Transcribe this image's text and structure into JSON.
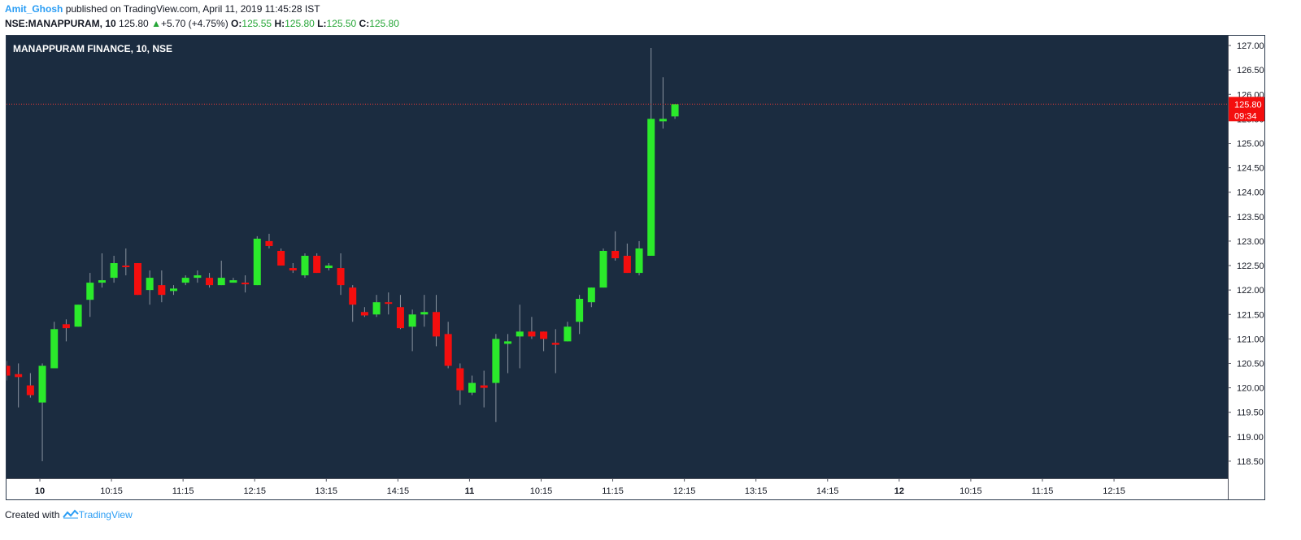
{
  "header": {
    "author": "Amit_Ghosh",
    "published_text": "published on TradingView.com, April 11, 2019 11:45:28 IST",
    "symbol": "NSE:MANAPPURAM, 10",
    "last": "125.80",
    "change_arrow": "▲",
    "change": "+5.70 (+4.75%)",
    "o_label": "O:",
    "o": "125.55",
    "h_label": "H:",
    "h": "125.80",
    "l_label": "L:",
    "l": "125.50",
    "c_label": "C:",
    "c": "125.80"
  },
  "footer": {
    "created_with": "Created with",
    "brand": "TradingView"
  },
  "colors": {
    "background": "#1b2c40",
    "up": "#2bea2b",
    "down": "#f40e0e",
    "wick": "#8a94a0",
    "price_line": "#e53935"
  },
  "chart_data": {
    "type": "candlestick",
    "title": "MANAPPURAM FINANCE, 10, NSE",
    "ylim": [
      118.15,
      127.2
    ],
    "y_ticks": [
      "118.50",
      "119.00",
      "119.50",
      "120.00",
      "120.50",
      "121.00",
      "121.50",
      "122.00",
      "122.50",
      "123.00",
      "123.50",
      "124.00",
      "124.50",
      "125.00",
      "125.50",
      "126.00",
      "126.50",
      "127.00"
    ],
    "x_ticks": [
      "10",
      "10:15",
      "11:15",
      "12:15",
      "13:15",
      "14:15",
      "11",
      "10:15",
      "11:15",
      "12:15",
      "13:15",
      "14:15",
      "12",
      "10:15",
      "11:15",
      "12:15"
    ],
    "last_price": {
      "value": 125.8,
      "label": "125.80",
      "countdown": "09:34"
    },
    "candles": [
      {
        "o": 120.45,
        "h": 120.55,
        "l": 120.15,
        "c": 120.25
      },
      {
        "o": 120.28,
        "h": 120.5,
        "l": 119.6,
        "c": 120.22
      },
      {
        "o": 120.05,
        "h": 120.3,
        "l": 119.8,
        "c": 119.85
      },
      {
        "o": 119.7,
        "h": 120.5,
        "l": 118.5,
        "c": 120.45
      },
      {
        "o": 120.4,
        "h": 121.35,
        "l": 120.4,
        "c": 121.2
      },
      {
        "o": 121.3,
        "h": 121.4,
        "l": 120.95,
        "c": 121.22
      },
      {
        "o": 121.25,
        "h": 121.7,
        "l": 121.25,
        "c": 121.7
      },
      {
        "o": 121.8,
        "h": 122.35,
        "l": 121.45,
        "c": 122.15
      },
      {
        "o": 122.15,
        "h": 122.75,
        "l": 122.05,
        "c": 122.2
      },
      {
        "o": 122.25,
        "h": 122.7,
        "l": 122.15,
        "c": 122.55
      },
      {
        "o": 122.5,
        "h": 122.85,
        "l": 122.3,
        "c": 122.48
      },
      {
        "o": 122.55,
        "h": 122.55,
        "l": 121.9,
        "c": 121.9
      },
      {
        "o": 122.0,
        "h": 122.4,
        "l": 121.7,
        "c": 122.25
      },
      {
        "o": 122.1,
        "h": 122.4,
        "l": 121.75,
        "c": 121.9
      },
      {
        "o": 121.98,
        "h": 122.1,
        "l": 121.9,
        "c": 122.03
      },
      {
        "o": 122.15,
        "h": 122.3,
        "l": 122.1,
        "c": 122.25
      },
      {
        "o": 122.25,
        "h": 122.4,
        "l": 122.15,
        "c": 122.3
      },
      {
        "o": 122.25,
        "h": 122.35,
        "l": 122.05,
        "c": 122.1
      },
      {
        "o": 122.1,
        "h": 122.6,
        "l": 122.1,
        "c": 122.25
      },
      {
        "o": 122.15,
        "h": 122.25,
        "l": 122.15,
        "c": 122.2
      },
      {
        "o": 122.15,
        "h": 122.3,
        "l": 121.95,
        "c": 122.12
      },
      {
        "o": 122.1,
        "h": 123.1,
        "l": 122.1,
        "c": 123.05
      },
      {
        "o": 123.0,
        "h": 123.15,
        "l": 122.85,
        "c": 122.9
      },
      {
        "o": 122.8,
        "h": 122.85,
        "l": 122.5,
        "c": 122.5
      },
      {
        "o": 122.45,
        "h": 122.55,
        "l": 122.35,
        "c": 122.4
      },
      {
        "o": 122.3,
        "h": 122.75,
        "l": 122.25,
        "c": 122.7
      },
      {
        "o": 122.7,
        "h": 122.75,
        "l": 122.35,
        "c": 122.35
      },
      {
        "o": 122.45,
        "h": 122.55,
        "l": 122.4,
        "c": 122.5
      },
      {
        "o": 122.45,
        "h": 122.75,
        "l": 121.9,
        "c": 122.1
      },
      {
        "o": 122.05,
        "h": 122.1,
        "l": 121.35,
        "c": 121.7
      },
      {
        "o": 121.55,
        "h": 121.65,
        "l": 121.45,
        "c": 121.48
      },
      {
        "o": 121.5,
        "h": 121.9,
        "l": 121.45,
        "c": 121.75
      },
      {
        "o": 121.75,
        "h": 121.95,
        "l": 121.5,
        "c": 121.72
      },
      {
        "o": 121.65,
        "h": 121.9,
        "l": 121.2,
        "c": 121.22
      },
      {
        "o": 121.25,
        "h": 121.6,
        "l": 120.75,
        "c": 121.5
      },
      {
        "o": 121.5,
        "h": 121.9,
        "l": 121.25,
        "c": 121.55
      },
      {
        "o": 121.55,
        "h": 121.9,
        "l": 120.85,
        "c": 121.05
      },
      {
        "o": 121.1,
        "h": 121.35,
        "l": 120.4,
        "c": 120.45
      },
      {
        "o": 120.4,
        "h": 120.5,
        "l": 119.65,
        "c": 119.95
      },
      {
        "o": 119.9,
        "h": 120.25,
        "l": 119.85,
        "c": 120.1
      },
      {
        "o": 120.05,
        "h": 120.35,
        "l": 119.6,
        "c": 120.0
      },
      {
        "o": 120.1,
        "h": 121.1,
        "l": 119.3,
        "c": 121.0
      },
      {
        "o": 120.9,
        "h": 121.1,
        "l": 120.3,
        "c": 120.95
      },
      {
        "o": 121.05,
        "h": 121.7,
        "l": 120.4,
        "c": 121.15
      },
      {
        "o": 121.15,
        "h": 121.45,
        "l": 121.0,
        "c": 121.05
      },
      {
        "o": 121.15,
        "h": 121.15,
        "l": 120.75,
        "c": 121.0
      },
      {
        "o": 120.92,
        "h": 121.2,
        "l": 120.3,
        "c": 120.88
      },
      {
        "o": 120.95,
        "h": 121.35,
        "l": 120.95,
        "c": 121.25
      },
      {
        "o": 121.35,
        "h": 121.9,
        "l": 121.1,
        "c": 121.82
      },
      {
        "o": 121.75,
        "h": 122.05,
        "l": 121.65,
        "c": 122.05
      },
      {
        "o": 122.05,
        "h": 122.85,
        "l": 122.05,
        "c": 122.8
      },
      {
        "o": 122.8,
        "h": 123.2,
        "l": 122.6,
        "c": 122.65
      },
      {
        "o": 122.7,
        "h": 122.95,
        "l": 122.35,
        "c": 122.35
      },
      {
        "o": 122.35,
        "h": 123.0,
        "l": 122.3,
        "c": 122.85
      },
      {
        "o": 122.7,
        "h": 126.95,
        "l": 122.7,
        "c": 125.5
      },
      {
        "o": 125.45,
        "h": 126.35,
        "l": 125.3,
        "c": 125.5
      },
      {
        "o": 125.55,
        "h": 125.8,
        "l": 125.5,
        "c": 125.8
      }
    ]
  }
}
